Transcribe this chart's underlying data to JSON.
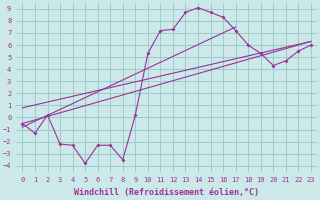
{
  "xlabel": "Windchill (Refroidissement éolien,°C)",
  "bg_color": "#cce8e8",
  "line_color": "#993399",
  "grid_color": "#99cccc",
  "xlim": [
    -0.5,
    23.5
  ],
  "ylim": [
    -4.5,
    9.5
  ],
  "xticks": [
    0,
    1,
    2,
    3,
    4,
    5,
    6,
    7,
    8,
    9,
    10,
    11,
    12,
    13,
    14,
    15,
    16,
    17,
    18,
    19,
    20,
    21,
    22,
    23
  ],
  "yticks": [
    -4,
    -3,
    -2,
    -1,
    0,
    1,
    2,
    3,
    4,
    5,
    6,
    7,
    8,
    9
  ],
  "series1_x": [
    0,
    1,
    2,
    3,
    4,
    5,
    6,
    7,
    8,
    9,
    10,
    11,
    12,
    13,
    14,
    15,
    16,
    17,
    18,
    19,
    20,
    21,
    22,
    23
  ],
  "series1_y": [
    -0.5,
    -1.3,
    0.2,
    -2.2,
    -2.3,
    -3.8,
    -2.3,
    -2.3,
    -3.5,
    0.2,
    5.3,
    7.2,
    7.3,
    8.7,
    9.1,
    8.7,
    8.3,
    7.2,
    6.0,
    5.3,
    4.3,
    4.7,
    5.5,
    6.0
  ],
  "line2_x": [
    0,
    23
  ],
  "line2_y": [
    -0.5,
    6.3
  ],
  "line3_x": [
    0,
    23
  ],
  "line3_y": [
    0.8,
    6.3
  ],
  "line4_x": [
    0,
    17
  ],
  "line4_y": [
    -0.8,
    7.5
  ],
  "xlabel_fontsize": 6,
  "tick_fontsize": 5
}
